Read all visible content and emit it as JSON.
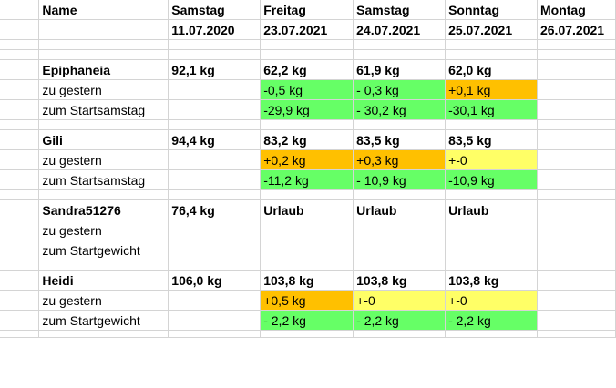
{
  "header": {
    "name_label": "Name",
    "dates": [
      {
        "day": "Samstag",
        "date": "11.07.2020"
      },
      {
        "day": "Freitag",
        "date": "23.07.2021"
      },
      {
        "day": "Samstag",
        "date": "24.07.2021"
      },
      {
        "day": "Sonntag",
        "date": "25.07.2021"
      },
      {
        "day": "Montag",
        "date": "26.07.2021"
      }
    ]
  },
  "colors": {
    "loss": "#66ff66",
    "gain": "#ffc000",
    "neutral": "#ffff66",
    "grid": "#d4d4d4"
  },
  "people": [
    {
      "name": "Epiphaneia",
      "start": "92,1 kg",
      "weights": [
        "62,2 kg",
        "61,9 kg",
        "62,0 kg",
        ""
      ],
      "row2_label": "zu gestern",
      "row2": [
        "-0,5 kg",
        "- 0,3 kg",
        "+0,1 kg",
        ""
      ],
      "row3_label": "zum Startsamstag",
      "row3": [
        "-29,9 kg",
        "- 30,2 kg",
        "-30,1 kg",
        ""
      ]
    },
    {
      "name": "Gili",
      "start": "94,4 kg",
      "weights": [
        "83,2 kg",
        "83,5 kg",
        "83,5 kg",
        ""
      ],
      "row2_label": "zu gestern",
      "row2": [
        "+0,2 kg",
        "+0,3 kg",
        "+-0",
        ""
      ],
      "row3_label": "zum Startsamstag",
      "row3": [
        "-11,2 kg",
        "- 10,9 kg",
        "-10,9 kg",
        ""
      ]
    },
    {
      "name": "Sandra51276",
      "start": "76,4 kg",
      "weights": [
        "Urlaub",
        "Urlaub",
        "Urlaub",
        ""
      ],
      "row2_label": "zu gestern",
      "row2": [
        "",
        "",
        "",
        ""
      ],
      "row3_label": "zum Startgewicht",
      "row3": [
        "",
        "",
        "",
        ""
      ]
    },
    {
      "name": "Heidi",
      "start": "106,0 kg",
      "weights": [
        "103,8 kg",
        "103,8 kg",
        "103,8 kg",
        ""
      ],
      "row2_label": "zu gestern",
      "row2": [
        "+0,5 kg",
        "+-0",
        "+-0",
        ""
      ],
      "row3_label": "zum Startgewicht",
      "row3": [
        "-  2,2 kg",
        "-  2,2 kg",
        "- 2,2 kg",
        ""
      ]
    }
  ]
}
